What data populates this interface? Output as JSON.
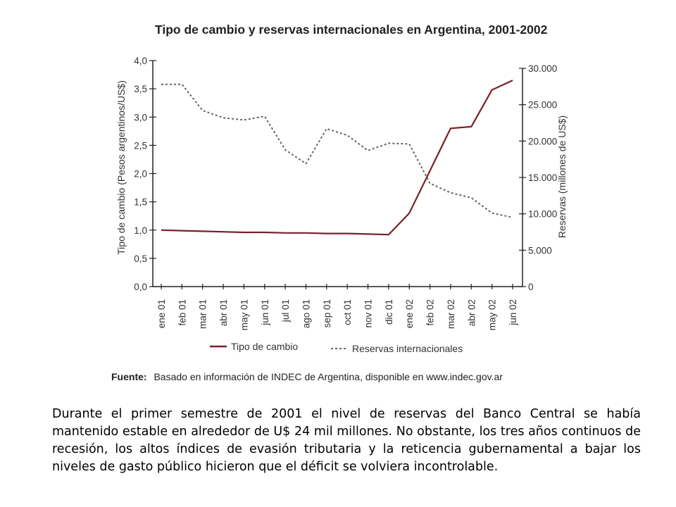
{
  "chart_data": {
    "type": "line",
    "title": "Tipo de cambio y reservas internacionales en Argentina, 2001-2002",
    "categories": [
      "ene 01",
      "feb 01",
      "mar 01",
      "abr 01",
      "may 01",
      "jun 01",
      "jul 01",
      "ago 01",
      "sep 01",
      "oct 01",
      "nov 01",
      "dic 01",
      "ene 02",
      "feb 02",
      "mar 02",
      "abr 02",
      "may 02",
      "jun 02"
    ],
    "y_left": {
      "label": "Tipo de cambio (Pesos argentinos/US$)",
      "ylim": [
        0,
        4
      ],
      "ticks": [
        "0,0",
        "0,5",
        "1,0",
        "1,5",
        "2,0",
        "2,5",
        "3,0",
        "3,5",
        "4,0"
      ]
    },
    "y_right": {
      "label": "Reservas (millones de US$)",
      "ylim": [
        0,
        30000
      ],
      "ticks": [
        "0",
        "5.000",
        "10.000",
        "15.000",
        "20.000",
        "25.000",
        "30.000"
      ]
    },
    "series": [
      {
        "name": "Tipo de cambio",
        "axis": "left",
        "style": "solid",
        "color": "#7a1f2b",
        "values": [
          1.0,
          0.99,
          0.98,
          0.97,
          0.96,
          0.96,
          0.95,
          0.95,
          0.94,
          0.94,
          0.93,
          0.92,
          1.3,
          2.05,
          2.8,
          2.83,
          3.48,
          3.65
        ]
      },
      {
        "name": "Reservas internacionales",
        "axis": "right",
        "style": "dotted",
        "color": "#666666",
        "values": [
          27800,
          27800,
          24200,
          23200,
          22900,
          23400,
          18800,
          16900,
          21700,
          20800,
          18700,
          19700,
          19600,
          14200,
          12900,
          12200,
          10100,
          9500
        ]
      }
    ],
    "source_label": "Fuente:",
    "source_text": "Basado en información de INDEC de Argentina, disponible en www.indec.gov.ar",
    "legend_position": "bottom",
    "grid": false
  },
  "caption": {
    "text": "Durante el primer semestre de 2001 el nivel de reservas del Banco Central se había mantenido estable en alrededor de U$ 24 mil millones. No obstante, los tres años continuos de recesión, los altos índices de evasión tributaria y la reticencia gubernamental a bajar los niveles de gasto público hicieron que el déficit se volviera incontrolable."
  }
}
